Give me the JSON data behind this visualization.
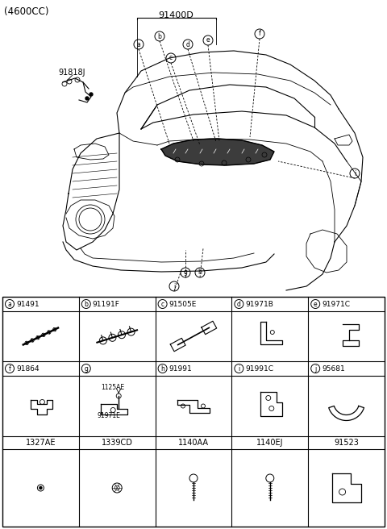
{
  "title_top": "(4600CC)",
  "main_label": "91400D",
  "side_label": "91818J",
  "bg_color": "#f5f5f5",
  "table_bg": "#ffffff",
  "line_color": "#000000",
  "table_header_row1": [
    {
      "letter": "a",
      "code": "91491"
    },
    {
      "letter": "b",
      "code": "91191F"
    },
    {
      "letter": "c",
      "code": "91505E"
    },
    {
      "letter": "d",
      "code": "91971B"
    },
    {
      "letter": "e",
      "code": "91971C"
    }
  ],
  "table_header_row2": [
    {
      "letter": "f",
      "code": "91864"
    },
    {
      "letter": "g",
      "code": ""
    },
    {
      "letter": "h",
      "code": "91991"
    },
    {
      "letter": "i",
      "code": "91991C"
    },
    {
      "letter": "j",
      "code": "95681"
    }
  ],
  "table_row3_codes": [
    "1327AE",
    "1339CD",
    "1140AA",
    "1140EJ",
    "91523"
  ],
  "g_sub_labels": [
    "1125AE",
    "91971E"
  ],
  "font_size_title": 8.5,
  "font_size_code": 7,
  "font_size_table_header": 6.5,
  "font_size_table_body": 6
}
